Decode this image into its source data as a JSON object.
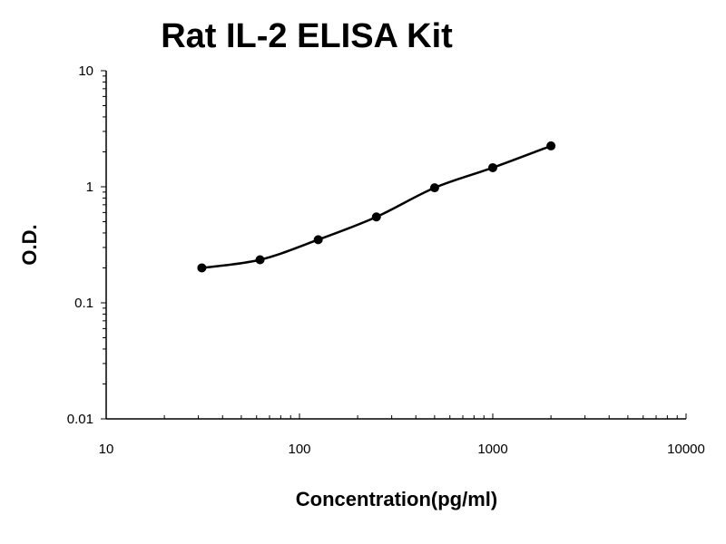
{
  "chart_data": {
    "type": "line",
    "title": "Rat IL-2 ELISA Kit",
    "xlabel": "Concentration(pg/ml)",
    "ylabel": "O.D.",
    "x_scale": "log",
    "y_scale": "log",
    "xlim": [
      10,
      10000
    ],
    "ylim": [
      0.01,
      10
    ],
    "x_ticks": [
      "10",
      "100",
      "1000",
      "10000"
    ],
    "y_ticks": [
      "0.01",
      "0.1",
      "1",
      "10"
    ],
    "grid": false,
    "series": [
      {
        "x": [
          31.25,
          62.5,
          125,
          250,
          500,
          1000,
          2000
        ],
        "y": [
          0.2,
          0.235,
          0.35,
          0.55,
          0.98,
          1.46,
          2.25
        ],
        "marker": "circle",
        "color": "#000000",
        "smooth": true
      }
    ]
  }
}
